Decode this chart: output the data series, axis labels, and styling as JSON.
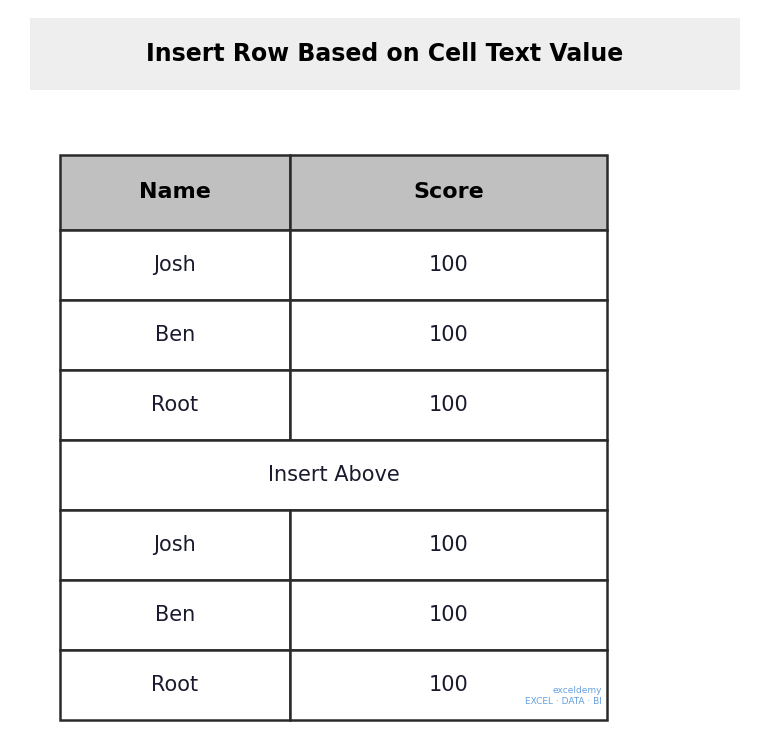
{
  "title": "Insert Row Based on Cell Text Value",
  "title_fontsize": 17,
  "title_bg_color": "#eeeeee",
  "bg_color": "#ffffff",
  "header_bg_color": "#c0c0c0",
  "cell_text_color": "#1a1a2e",
  "header_text_color": "#000000",
  "header_font_weight": "bold",
  "header_fontsize": 16,
  "cell_fontsize": 15,
  "table_border_color": "#2a2a2a",
  "table_border_lw": 1.8,
  "columns": [
    "Name",
    "Score"
  ],
  "rows": [
    [
      "Josh",
      "100"
    ],
    [
      "Ben",
      "100"
    ],
    [
      "Root",
      "100"
    ],
    [
      "Insert Above",
      ""
    ],
    [
      "Josh",
      "100"
    ],
    [
      "Ben",
      "100"
    ],
    [
      "Root",
      "100"
    ]
  ],
  "merged_row_index": 3,
  "merged_row_text": "Insert Above",
  "merged_row_color": "#ffffff",
  "merged_row_text_color": "#1a1a2e",
  "watermark_text": "exceldemy\nEXCEL · DATA · BI",
  "watermark_color": "#4a90d9",
  "watermark_fontsize": 6.5
}
